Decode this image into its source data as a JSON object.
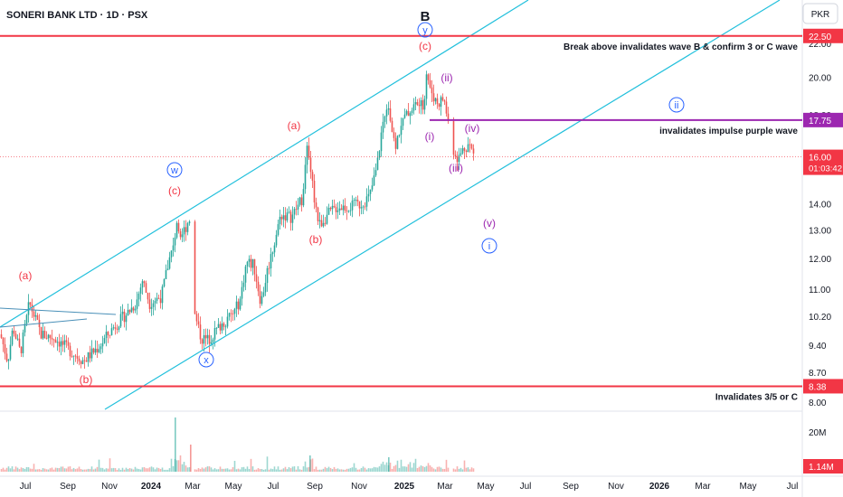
{
  "header": {
    "symbol_line": "SONERI BANK LTD · 1D · PSX",
    "currency": "PKR"
  },
  "chart_data": {
    "type": "candlestick",
    "price_axis": {
      "ticks": [
        22.0,
        20.0,
        18.0,
        16.0,
        14.0,
        13.0,
        12.0,
        11.0,
        10.2,
        9.4,
        8.7,
        8.0
      ],
      "tick_labels": [
        "22.00",
        "20.00",
        "18.00",
        "16.00",
        "14.00",
        "13.00",
        "12.00",
        "11.00",
        "10.20",
        "9.40",
        "8.70",
        "8.00"
      ],
      "scale": "log"
    },
    "volume_axis": {
      "tick_labels": [
        "20M"
      ]
    },
    "time_axis": {
      "tick_labels": [
        "Jul",
        "Sep",
        "Nov",
        "2024",
        "Mar",
        "May",
        "Jul",
        "Sep",
        "Nov",
        "2025",
        "Mar",
        "May",
        "Jul",
        "Sep",
        "Nov",
        "2026",
        "Mar",
        "May",
        "Jul"
      ],
      "bold": [
        "2024",
        "2025",
        "2026"
      ]
    },
    "horizontal_levels": [
      {
        "value": 22.5,
        "label": "22.50",
        "color": "#f23645",
        "note": "Break above invalidates wave B & confirm 3 or C wave"
      },
      {
        "value": 17.75,
        "label": "17.75",
        "color": "#9c27b0",
        "note": "invalidates impulse purple wave"
      },
      {
        "value": 8.38,
        "label": "8.38",
        "color": "#f23645",
        "note": "Invalidates 3/5 or C"
      }
    ],
    "last_price": {
      "value": "16.00",
      "countdown": "01:03:42",
      "color": "#f23645"
    },
    "last_volume": {
      "value": "1.14M",
      "color": "#f23645"
    },
    "wave_labels_red": [
      "(a)",
      "(b)",
      "(c)",
      "(a)",
      "(b)",
      "(c)"
    ],
    "wave_labels_blue": [
      "w",
      "x",
      "y",
      "ii",
      "i"
    ],
    "wave_labels_purple": [
      "(i)",
      "(ii)",
      "(iii)",
      "(iv)",
      "(v)"
    ],
    "wave_label_black": "B",
    "colors": {
      "up": "#26a69a",
      "down": "#ef5350",
      "channel": "#22c0dc",
      "red": "#f23645",
      "purple": "#9c27b0",
      "blue": "#2962ff"
    }
  }
}
